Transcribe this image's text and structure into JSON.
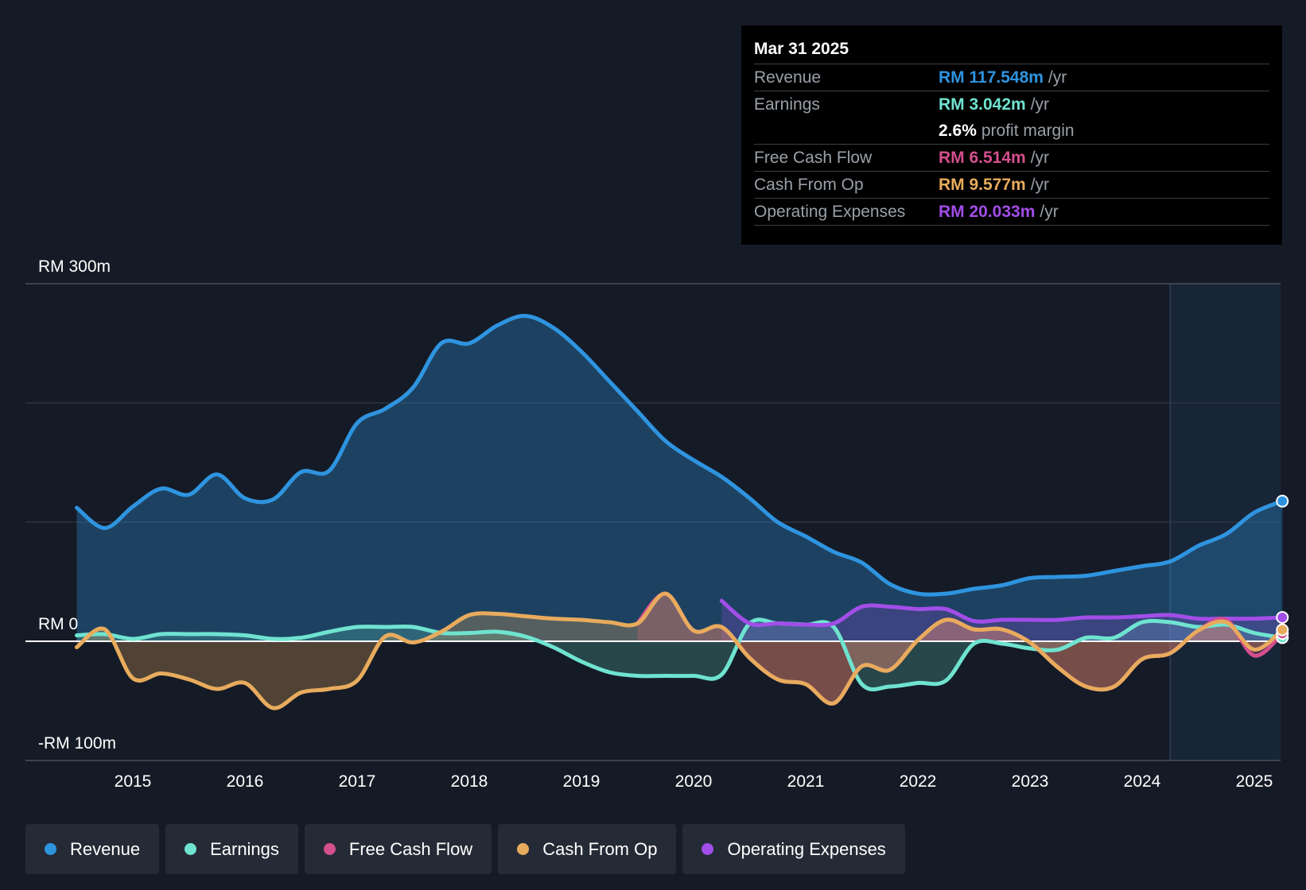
{
  "colors": {
    "revenue": "#2f94e0",
    "earnings": "#6fe3d0",
    "fcf": "#d44f8d",
    "cfo": "#e8ab5d",
    "opex": "#a24ee8",
    "background": "#151b26"
  },
  "tooltip": {
    "date": "Mar 31 2025",
    "rows": [
      {
        "label": "Revenue",
        "value": "RM 117.548m",
        "unit": "/yr",
        "color": "#2f94e0"
      },
      {
        "label": "Earnings",
        "value": "RM 3.042m",
        "unit": "/yr",
        "color": "#6fe3d0"
      },
      {
        "label": "",
        "value": "2.6%",
        "unit": "profit margin",
        "color": "#ffffff"
      },
      {
        "label": "Free Cash Flow",
        "value": "RM 6.514m",
        "unit": "/yr",
        "color": "#d44f8d"
      },
      {
        "label": "Cash From Op",
        "value": "RM 9.577m",
        "unit": "/yr",
        "color": "#e8ab5d"
      },
      {
        "label": "Operating Expenses",
        "value": "RM 20.033m",
        "unit": "/yr",
        "color": "#a24ee8"
      }
    ]
  },
  "legend": [
    {
      "label": "Revenue",
      "color": "#2f94e0"
    },
    {
      "label": "Earnings",
      "color": "#6fe3d0"
    },
    {
      "label": "Free Cash Flow",
      "color": "#d44f8d"
    },
    {
      "label": "Cash From Op",
      "color": "#e8ab5d"
    },
    {
      "label": "Operating Expenses",
      "color": "#a24ee8"
    }
  ],
  "chart_data": {
    "type": "line",
    "title": "",
    "xlabel": "",
    "ylabel": "",
    "xlim": [
      2014.5,
      2025.25
    ],
    "ylim": [
      -100,
      300
    ],
    "y_tick_labels": [
      "RM 300m",
      "RM 0",
      "-RM 100m"
    ],
    "y_tick_values": [
      300,
      0,
      -100
    ],
    "x_ticks": [
      2015,
      2016,
      2017,
      2018,
      2019,
      2020,
      2021,
      2022,
      2023,
      2024,
      2025
    ],
    "x_tick_labels": [
      "2015",
      "2016",
      "2017",
      "2018",
      "2019",
      "2020",
      "2021",
      "2022",
      "2023",
      "2024",
      "2025"
    ],
    "forecast_start": 2024.25,
    "series": [
      {
        "name": "Revenue",
        "key": "revenue",
        "points": [
          [
            2014.5,
            112
          ],
          [
            2014.75,
            95
          ],
          [
            2015.0,
            113
          ],
          [
            2015.25,
            128
          ],
          [
            2015.5,
            123
          ],
          [
            2015.75,
            140
          ],
          [
            2016.0,
            120
          ],
          [
            2016.25,
            119
          ],
          [
            2016.5,
            142
          ],
          [
            2016.75,
            143
          ],
          [
            2017.0,
            183
          ],
          [
            2017.25,
            195
          ],
          [
            2017.5,
            213
          ],
          [
            2017.75,
            250
          ],
          [
            2018.0,
            250
          ],
          [
            2018.25,
            265
          ],
          [
            2018.5,
            273
          ],
          [
            2018.75,
            263
          ],
          [
            2019.0,
            243
          ],
          [
            2019.25,
            218
          ],
          [
            2019.5,
            193
          ],
          [
            2019.75,
            168
          ],
          [
            2020.0,
            152
          ],
          [
            2020.25,
            138
          ],
          [
            2020.5,
            120
          ],
          [
            2020.75,
            100
          ],
          [
            2021.0,
            88
          ],
          [
            2021.25,
            75
          ],
          [
            2021.5,
            66
          ],
          [
            2021.75,
            48
          ],
          [
            2022.0,
            40
          ],
          [
            2022.25,
            40
          ],
          [
            2022.5,
            44
          ],
          [
            2022.75,
            47
          ],
          [
            2023.0,
            53
          ],
          [
            2023.25,
            54
          ],
          [
            2023.5,
            55
          ],
          [
            2023.75,
            59
          ],
          [
            2024.0,
            63
          ],
          [
            2024.25,
            67
          ],
          [
            2024.5,
            80
          ],
          [
            2024.75,
            90
          ],
          [
            2025.0,
            108
          ],
          [
            2025.25,
            117.548
          ]
        ]
      },
      {
        "name": "Earnings",
        "key": "earnings",
        "points": [
          [
            2014.5,
            5
          ],
          [
            2014.75,
            6
          ],
          [
            2015.0,
            2
          ],
          [
            2015.25,
            6
          ],
          [
            2015.5,
            6
          ],
          [
            2015.75,
            6
          ],
          [
            2016.0,
            5
          ],
          [
            2016.25,
            2
          ],
          [
            2016.5,
            3
          ],
          [
            2016.75,
            8
          ],
          [
            2017.0,
            12
          ],
          [
            2017.25,
            12
          ],
          [
            2017.5,
            12
          ],
          [
            2017.75,
            7
          ],
          [
            2018.0,
            7
          ],
          [
            2018.25,
            8
          ],
          [
            2018.5,
            4
          ],
          [
            2018.75,
            -5
          ],
          [
            2019.0,
            -17
          ],
          [
            2019.25,
            -26
          ],
          [
            2019.5,
            -29
          ],
          [
            2019.75,
            -29
          ],
          [
            2020.0,
            -29
          ],
          [
            2020.25,
            -28
          ],
          [
            2020.5,
            15
          ],
          [
            2020.75,
            15
          ],
          [
            2021.0,
            14
          ],
          [
            2021.25,
            12
          ],
          [
            2021.5,
            -36
          ],
          [
            2021.75,
            -38
          ],
          [
            2022.0,
            -35
          ],
          [
            2022.25,
            -33
          ],
          [
            2022.5,
            -2
          ],
          [
            2022.75,
            -2
          ],
          [
            2023.0,
            -6
          ],
          [
            2023.25,
            -7
          ],
          [
            2023.5,
            3
          ],
          [
            2023.75,
            3
          ],
          [
            2024.0,
            16
          ],
          [
            2024.25,
            16
          ],
          [
            2024.5,
            12
          ],
          [
            2024.75,
            14
          ],
          [
            2025.0,
            7
          ],
          [
            2025.25,
            3.042
          ]
        ]
      },
      {
        "name": "Free Cash Flow",
        "key": "fcf",
        "points": [
          [
            2019.5,
            15
          ],
          [
            2019.75,
            40
          ],
          [
            2020.0,
            9
          ],
          [
            2020.25,
            12
          ],
          [
            2020.5,
            -14
          ],
          [
            2020.75,
            -32
          ],
          [
            2021.0,
            -36
          ],
          [
            2021.25,
            -52
          ],
          [
            2021.5,
            -21
          ],
          [
            2021.75,
            -24
          ],
          [
            2022.0,
            1
          ],
          [
            2022.25,
            18
          ],
          [
            2022.5,
            10
          ],
          [
            2022.75,
            10
          ],
          [
            2023.0,
            -1
          ],
          [
            2023.25,
            -22
          ],
          [
            2023.5,
            -38
          ],
          [
            2023.75,
            -38
          ],
          [
            2024.0,
            -15
          ],
          [
            2024.25,
            -10
          ],
          [
            2024.5,
            9
          ],
          [
            2024.75,
            18
          ],
          [
            2025.0,
            -12
          ],
          [
            2025.25,
            6.514
          ]
        ]
      },
      {
        "name": "Cash From Op",
        "key": "cfo",
        "points": [
          [
            2014.5,
            -5
          ],
          [
            2014.75,
            10
          ],
          [
            2015.0,
            -31
          ],
          [
            2015.25,
            -27
          ],
          [
            2015.5,
            -32
          ],
          [
            2015.75,
            -40
          ],
          [
            2016.0,
            -35
          ],
          [
            2016.25,
            -56
          ],
          [
            2016.5,
            -43
          ],
          [
            2016.75,
            -40
          ],
          [
            2017.0,
            -33
          ],
          [
            2017.25,
            4
          ],
          [
            2017.5,
            -1
          ],
          [
            2017.75,
            8
          ],
          [
            2018.0,
            22
          ],
          [
            2018.25,
            23
          ],
          [
            2018.5,
            21
          ],
          [
            2018.75,
            19
          ],
          [
            2019.0,
            18
          ],
          [
            2019.25,
            16
          ],
          [
            2019.5,
            15
          ],
          [
            2019.75,
            40
          ],
          [
            2020.0,
            9
          ],
          [
            2020.25,
            12
          ],
          [
            2020.5,
            -14
          ],
          [
            2020.75,
            -32
          ],
          [
            2021.0,
            -36
          ],
          [
            2021.25,
            -52
          ],
          [
            2021.5,
            -21
          ],
          [
            2021.75,
            -24
          ],
          [
            2022.0,
            1
          ],
          [
            2022.25,
            18
          ],
          [
            2022.5,
            10
          ],
          [
            2022.75,
            10
          ],
          [
            2023.0,
            -1
          ],
          [
            2023.25,
            -22
          ],
          [
            2023.5,
            -38
          ],
          [
            2023.75,
            -38
          ],
          [
            2024.0,
            -15
          ],
          [
            2024.25,
            -10
          ],
          [
            2024.5,
            9
          ],
          [
            2024.75,
            16
          ],
          [
            2025.0,
            -7
          ],
          [
            2025.25,
            9.577
          ]
        ]
      },
      {
        "name": "Operating Expenses",
        "key": "opex",
        "points": [
          [
            2020.25,
            34
          ],
          [
            2020.5,
            15
          ],
          [
            2020.75,
            15
          ],
          [
            2021.0,
            14
          ],
          [
            2021.25,
            15
          ],
          [
            2021.5,
            29
          ],
          [
            2021.75,
            29
          ],
          [
            2022.0,
            27
          ],
          [
            2022.25,
            27
          ],
          [
            2022.5,
            17
          ],
          [
            2022.75,
            18
          ],
          [
            2023.0,
            18
          ],
          [
            2023.25,
            18
          ],
          [
            2023.5,
            20
          ],
          [
            2023.75,
            20
          ],
          [
            2024.0,
            21
          ],
          [
            2024.25,
            22
          ],
          [
            2024.5,
            19
          ],
          [
            2024.75,
            19
          ],
          [
            2025.0,
            19
          ],
          [
            2025.25,
            20.033
          ]
        ]
      }
    ]
  }
}
